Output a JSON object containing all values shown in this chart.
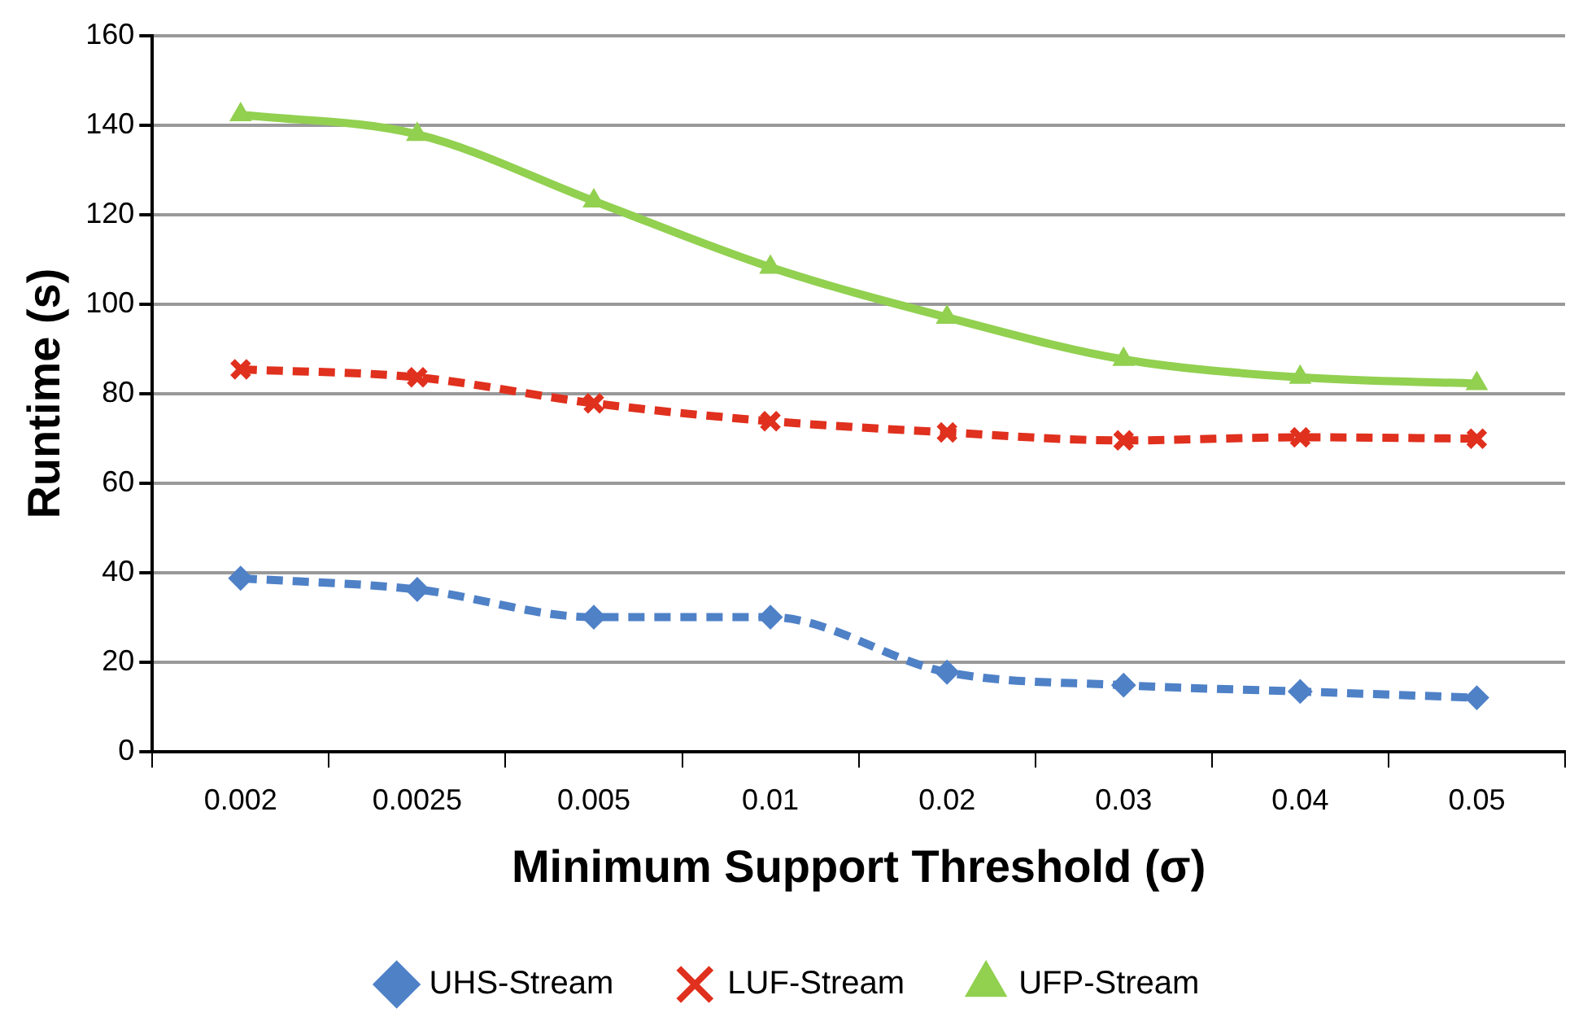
{
  "chart_data": {
    "type": "line",
    "xlabel": "Minimum Support Threshold (σ)",
    "ylabel": "Runtime (s)",
    "categories": [
      "0.002",
      "0.0025",
      "0.005",
      "0.01",
      "0.02",
      "0.03",
      "0.04",
      "0.05"
    ],
    "series": [
      {
        "name": "UHS-Stream",
        "color": "#4f81c7",
        "marker": "diamond",
        "line_style": "dashed",
        "values": [
          38.7,
          36.2,
          30,
          30,
          17.7,
          14.8,
          13.4,
          12
        ]
      },
      {
        "name": "LUF-Stream",
        "color": "#e0301e",
        "marker": "cross",
        "line_style": "dashed",
        "values": [
          85.4,
          83.6,
          77.8,
          73.8,
          71.3,
          69.5,
          70.2,
          69.9
        ]
      },
      {
        "name": "UFP-Stream",
        "color": "#92d050",
        "marker": "triangle",
        "line_style": "solid",
        "values": [
          142.3,
          137.9,
          123,
          108.2,
          97,
          87.6,
          83.6,
          82.2
        ]
      }
    ],
    "ylim": [
      0,
      160
    ],
    "yticks": [
      0,
      20,
      40,
      60,
      80,
      100,
      120,
      140,
      160
    ],
    "grid": "y",
    "legend": "bottom"
  }
}
